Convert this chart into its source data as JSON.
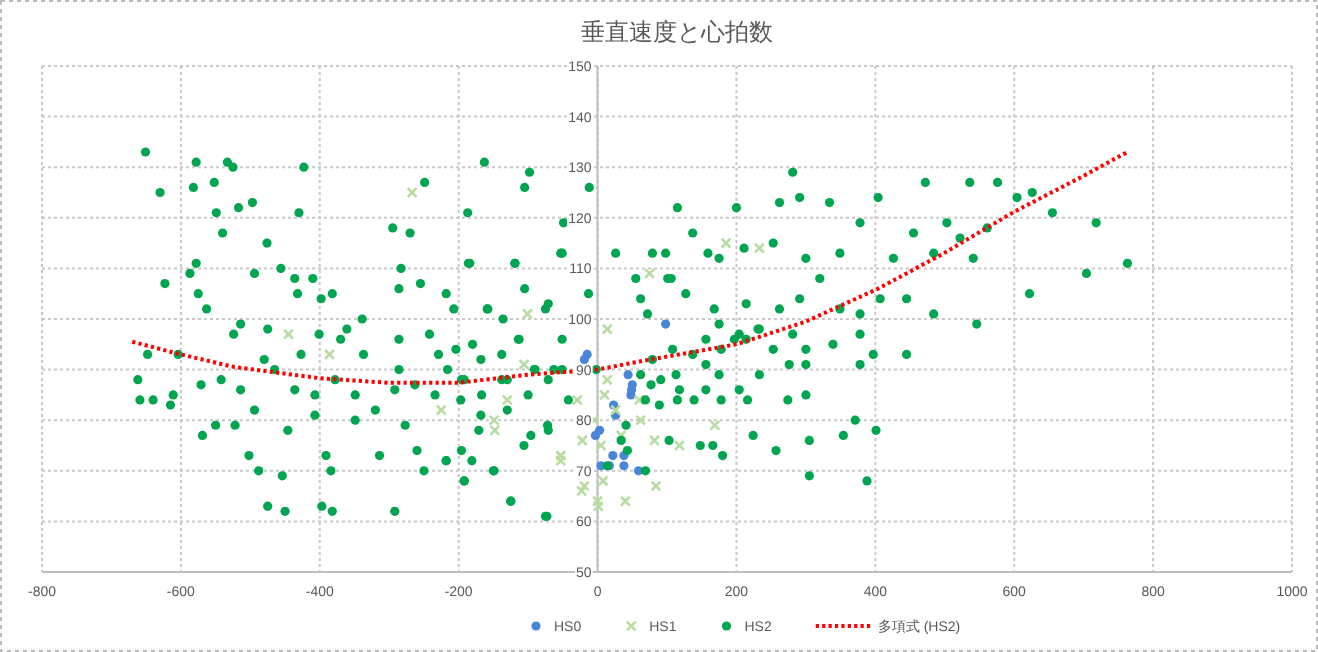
{
  "chart_data": {
    "type": "scatter",
    "title": "垂直速度と心拍数",
    "xlim": [
      -800,
      1000
    ],
    "xticks": [
      -800,
      -600,
      -400,
      -200,
      0,
      200,
      400,
      600,
      800,
      1000
    ],
    "ylim": [
      50,
      150
    ],
    "yticks": [
      50,
      60,
      70,
      80,
      90,
      100,
      110,
      120,
      130,
      140,
      150
    ],
    "grid": true,
    "legend": "bottom",
    "series": [
      {
        "name": "HS0",
        "color": "#4a86d8",
        "marker": "circle",
        "x": [
          98,
          -19,
          50,
          48,
          26,
          -3,
          5,
          38,
          59,
          22,
          38,
          -15,
          3,
          23,
          44,
          49,
          17
        ],
        "values": [
          99,
          92,
          87,
          85,
          81,
          77,
          71,
          71,
          70,
          73,
          73,
          93,
          78,
          83,
          89,
          86,
          71
        ]
      },
      {
        "name": "HS1",
        "color": "#b7dca0",
        "marker": "cross",
        "x": [
          -22,
          0,
          8,
          -19,
          10,
          26,
          62,
          82,
          -53,
          -106,
          -149,
          -130,
          14,
          -5,
          34,
          5,
          -29,
          75,
          14,
          -101,
          -267,
          -445,
          -386,
          -225,
          -148,
          -53,
          -23,
          1,
          40,
          185,
          233,
          169,
          118,
          84,
          60
        ],
        "values": [
          76,
          64,
          68,
          67,
          85,
          82,
          80,
          76,
          73,
          91,
          80,
          84,
          88,
          80,
          77,
          75,
          84,
          109,
          98,
          101,
          125,
          97,
          93,
          82,
          78,
          72,
          66,
          63,
          64,
          115,
          114,
          79,
          75,
          67,
          84
        ]
      },
      {
        "name": "HS2",
        "color": "#00a550",
        "marker": "circle",
        "x": [
          -651,
          -630,
          -578,
          -582,
          -552,
          -533,
          -525,
          -549,
          -517,
          -540,
          -497,
          -423,
          -430,
          -476,
          -456,
          -494,
          -587,
          -578,
          -623,
          -575,
          -563,
          -436,
          -432,
          -410,
          -398,
          -382,
          -339,
          -295,
          -270,
          -283,
          -249,
          -286,
          -255,
          -218,
          -187,
          -184,
          -163,
          -105,
          -98,
          -49,
          -12,
          -119,
          -51,
          -13,
          -71,
          -105,
          -158,
          -136,
          -113,
          -51,
          -180,
          -242,
          -229,
          -286,
          -361,
          -401,
          -370,
          -475,
          -514,
          -524,
          -604,
          -648,
          -662,
          -659,
          -640,
          -611,
          -615,
          -569,
          -550,
          -522,
          -502,
          -488,
          -475,
          -450,
          -454,
          -397,
          -382,
          -391,
          -384,
          -314,
          -292,
          -250,
          -260,
          -218,
          -192,
          -181,
          -150,
          -125,
          -73,
          -196,
          -171,
          -106,
          -71,
          -446,
          -407,
          -349,
          -277,
          -571,
          -542,
          -514,
          -494,
          -465,
          -436,
          -407,
          -378,
          -349,
          -320,
          -292,
          -263,
          -234,
          -196,
          -167,
          -138,
          -100,
          -71,
          -42,
          -480,
          -427,
          -337,
          -286,
          -204,
          -138,
          -90,
          -51,
          281,
          115,
          200,
          262,
          291,
          334,
          404,
          472,
          536,
          576,
          604,
          626,
          655,
          718,
          763,
          704,
          622,
          546,
          503,
          484,
          541,
          561,
          522,
          455,
          426,
          445,
          484,
          378,
          349,
          300,
          253,
          214,
          175,
          137,
          98,
          101,
          127,
          175,
          204,
          233,
          262,
          291,
          320,
          349,
          378,
          407,
          339,
          378,
          397,
          445,
          300,
          281,
          253,
          214,
          156,
          137,
          108,
          79,
          113,
          156,
          175,
          204,
          233,
          276,
          300,
          378,
          156,
          118,
          89,
          69,
          180,
          166,
          148,
          224,
          257,
          300,
          274,
          305,
          305,
          354,
          371,
          388,
          401,
          103,
          69,
          72,
          -53,
          -186,
          -119,
          -207,
          -159,
          -75,
          -114,
          -216,
          -192,
          -168,
          -130,
          -91,
          -63,
          -2,
          -197,
          -168,
          -130,
          -96,
          -72,
          -218,
          -192,
          -149,
          -125,
          -75,
          62,
          91,
          115,
          139,
          178,
          216,
          77,
          34,
          43,
          14,
          41,
          26,
          55,
          79,
          106,
          62,
          159,
          168,
          211,
          178,
          197,
          231
        ],
        "values": [
          133,
          125,
          131,
          126,
          127,
          131,
          130,
          121,
          122,
          117,
          123,
          130,
          121,
          115,
          110,
          109,
          109,
          111,
          107,
          105,
          102,
          108,
          105,
          108,
          104,
          105,
          100,
          118,
          117,
          110,
          127,
          106,
          107,
          105,
          121,
          111,
          131,
          126,
          129,
          119,
          126,
          111,
          113,
          105,
          103,
          106,
          102,
          100,
          96,
          96,
          95,
          97,
          93,
          96,
          98,
          97,
          96,
          98,
          99,
          97,
          93,
          93,
          88,
          84,
          84,
          85,
          83,
          77,
          79,
          79,
          73,
          70,
          63,
          62,
          69,
          63,
          62,
          73,
          70,
          73,
          62,
          70,
          74,
          72,
          68,
          72,
          70,
          64,
          61,
          74,
          78,
          75,
          78,
          78,
          81,
          80,
          79,
          87,
          88,
          86,
          82,
          90,
          86,
          85,
          88,
          85,
          82,
          86,
          87,
          85,
          88,
          85,
          88,
          85,
          88,
          84,
          92,
          93,
          93,
          90,
          94,
          93,
          90,
          90,
          129,
          122,
          122,
          123,
          124,
          123,
          124,
          127,
          127,
          127,
          124,
          125,
          121,
          119,
          111,
          109,
          105,
          99,
          119,
          113,
          112,
          118,
          116,
          117,
          112,
          104,
          101,
          119,
          113,
          112,
          115,
          103,
          112,
          117,
          113,
          108,
          105,
          99,
          97,
          98,
          102,
          104,
          108,
          102,
          101,
          104,
          95,
          97,
          93,
          93,
          94,
          97,
          94,
          96,
          96,
          93,
          94,
          92,
          89,
          91,
          89,
          86,
          89,
          91,
          91,
          91,
          86,
          86,
          83,
          84,
          73,
          75,
          75,
          77,
          74,
          85,
          84,
          76,
          69,
          77,
          80,
          68,
          78,
          76,
          70,
          101,
          113,
          111,
          111,
          102,
          102,
          102,
          96,
          90,
          88,
          92,
          88,
          90,
          90,
          90,
          84,
          81,
          82,
          77,
          79,
          72,
          68,
          70,
          64,
          61,
          89,
          88,
          84,
          84,
          84,
          84,
          87,
          76,
          74,
          71,
          79,
          113,
          108,
          113,
          108,
          104,
          113,
          102,
          114,
          94,
          96,
          98
        ]
      },
      {
        "name": "多項式 (HS2)",
        "color": "#ff0000",
        "type": "line",
        "line_style": "dotted",
        "x": [
          -670,
          -600,
          -523,
          -400,
          -302,
          -200,
          -100,
          0,
          60,
          200,
          300,
          404,
          495,
          600,
          696,
          763
        ],
        "values": [
          95.5,
          93,
          90.5,
          88.3,
          87.4,
          87.4,
          89,
          90,
          91.6,
          95,
          99.5,
          106,
          112.7,
          121.2,
          128,
          133
        ]
      }
    ]
  }
}
